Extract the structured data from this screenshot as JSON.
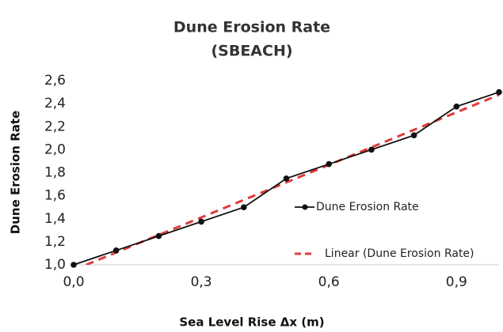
{
  "chart_data": {
    "type": "line",
    "title": "Dune Erosion Rate",
    "subtitle": "(SBEACH)",
    "x_label": "Sea Level Rise Δx (m)",
    "y_label": "Dune Erosion Rate",
    "xlim": [
      0,
      1
    ],
    "ylim": [
      1.0,
      2.6
    ],
    "xticks": [
      {
        "value": 0,
        "label": "0,0"
      },
      {
        "value": 0.3,
        "label": "0,3"
      },
      {
        "value": 0.6,
        "label": "0,6"
      },
      {
        "value": 0.9,
        "label": "0,9"
      }
    ],
    "yticks": [
      {
        "value": 1.0,
        "label": "1,0"
      },
      {
        "value": 1.2,
        "label": "1,2"
      },
      {
        "value": 1.4,
        "label": "1,4"
      },
      {
        "value": 1.6,
        "label": "1,6"
      },
      {
        "value": 1.8,
        "label": "1,8"
      },
      {
        "value": 2.0,
        "label": "2,0"
      },
      {
        "value": 2.2,
        "label": "2,2"
      },
      {
        "value": 2.4,
        "label": "2,4"
      },
      {
        "value": 2.6,
        "label": "2,6"
      }
    ],
    "series": [
      {
        "name": "Dune Erosion Rate",
        "color": "#111111",
        "style": "solid",
        "markers": true,
        "x": [
          0,
          0.1,
          0.2,
          0.3,
          0.4,
          0.5,
          0.6,
          0.7,
          0.8,
          0.9,
          1.0
        ],
        "values": [
          1.0,
          1.125,
          1.25,
          1.375,
          1.5,
          1.75,
          1.875,
          2.0,
          2.125,
          2.375,
          2.5
        ]
      },
      {
        "name": "Linear (Dune Erosion Rate)",
        "color": "#e03a3a",
        "style": "dashed",
        "markers": false,
        "x": [
          0,
          1.0
        ],
        "values": [
          0.955,
          2.477
        ]
      }
    ]
  }
}
